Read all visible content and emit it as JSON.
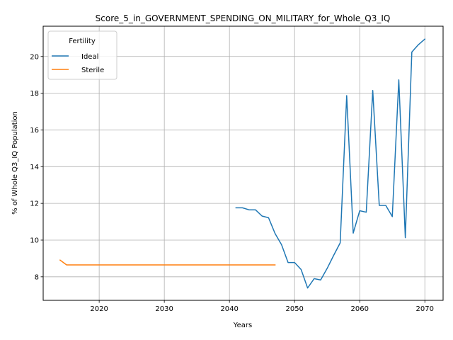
{
  "chart_data": {
    "type": "line",
    "title": "Score_5_in_GOVERNMENT_SPENDING_ON_MILITARY_for_Whole_Q3_IQ",
    "xlabel": "Years",
    "ylabel": "% of Whole Q3_IQ Population",
    "xlim": [
      2011.4,
      2072.8
    ],
    "ylim": [
      6.72,
      21.65
    ],
    "xticks": [
      2020,
      2030,
      2040,
      2050,
      2060,
      2070
    ],
    "yticks": [
      8,
      10,
      12,
      14,
      16,
      18,
      20
    ],
    "grid": true,
    "legend": {
      "title": "Fertility",
      "placement": "upper-left"
    },
    "series": [
      {
        "name": "Ideal",
        "color": "#1f77b4",
        "x": [
          2041,
          2042,
          2043,
          2044,
          2045,
          2046,
          2047,
          2048,
          2049,
          2050,
          2051,
          2052,
          2053,
          2054,
          2055,
          2056,
          2057,
          2058,
          2059,
          2060,
          2061,
          2062,
          2063,
          2064,
          2065,
          2066,
          2067,
          2068,
          2069,
          2070
        ],
        "values": [
          11.76,
          11.76,
          11.65,
          11.65,
          11.31,
          11.22,
          10.36,
          9.75,
          8.78,
          8.78,
          8.4,
          7.39,
          7.9,
          7.83,
          8.46,
          9.17,
          9.85,
          17.87,
          10.38,
          11.6,
          11.52,
          18.15,
          11.89,
          11.89,
          11.28,
          18.73,
          10.13,
          20.24,
          20.64,
          20.95
        ]
      },
      {
        "name": "Sterile",
        "color": "#ff7f0e",
        "x": [
          2014,
          2015,
          2016,
          2017,
          2018,
          2019,
          2020,
          2021,
          2022,
          2023,
          2024,
          2025,
          2026,
          2027,
          2028,
          2029,
          2030,
          2031,
          2032,
          2033,
          2034,
          2035,
          2036,
          2037,
          2038,
          2039,
          2040,
          2041,
          2042,
          2043,
          2044,
          2045,
          2046,
          2047
        ],
        "values": [
          8.91,
          8.65,
          8.65,
          8.65,
          8.65,
          8.65,
          8.65,
          8.65,
          8.65,
          8.65,
          8.65,
          8.65,
          8.65,
          8.65,
          8.65,
          8.65,
          8.65,
          8.65,
          8.65,
          8.65,
          8.65,
          8.65,
          8.65,
          8.65,
          8.65,
          8.65,
          8.65,
          8.65,
          8.65,
          8.65,
          8.65,
          8.65,
          8.65,
          8.65
        ]
      }
    ]
  }
}
